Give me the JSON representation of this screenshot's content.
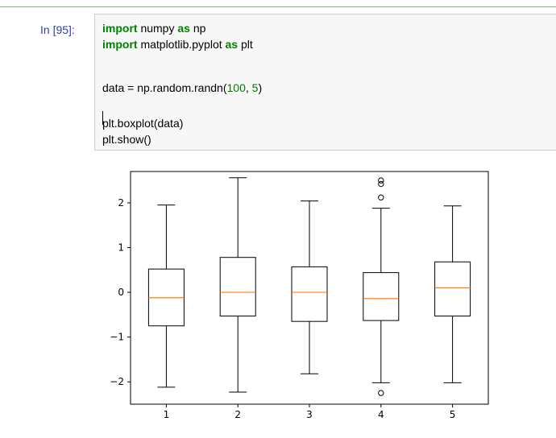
{
  "cell": {
    "prompt": "In [95]:",
    "line1": {
      "kw1": "import",
      "rest1": " numpy ",
      "kw2": "as",
      "rest2": " np"
    },
    "line2": {
      "kw1": "import",
      "rest1": " matplotlib.pyplot ",
      "kw2": "as",
      "rest2": " plt"
    },
    "line3": {
      "prefix": "data = np.random.randn(",
      "n1": "100",
      "sep": ", ",
      "n2": "5",
      "suffix": ")"
    },
    "line4": "plt.boxplot(data)",
    "line5": "plt.show()"
  },
  "colors": {
    "keyword": "#008000",
    "prompt": "#303f9f",
    "median": "#ff7f0e",
    "cell_bg": "#f7f7f7"
  },
  "chart_data": {
    "type": "boxplot",
    "categories": [
      "1",
      "2",
      "3",
      "4",
      "5"
    ],
    "boxes": [
      {
        "q1": -0.75,
        "median": -0.12,
        "q3": 0.52,
        "whisker_low": -2.12,
        "whisker_high": 1.95,
        "outliers": []
      },
      {
        "q1": -0.53,
        "median": 0.0,
        "q3": 0.78,
        "whisker_low": -2.23,
        "whisker_high": 2.56,
        "outliers": []
      },
      {
        "q1": -0.65,
        "median": 0.0,
        "q3": 0.57,
        "whisker_low": -1.82,
        "whisker_high": 2.04,
        "outliers": []
      },
      {
        "q1": -0.63,
        "median": -0.14,
        "q3": 0.44,
        "whisker_low": -2.02,
        "whisker_high": 1.88,
        "outliers": [
          2.12,
          2.42,
          2.5,
          -2.25
        ]
      },
      {
        "q1": -0.53,
        "median": 0.1,
        "q3": 0.68,
        "whisker_low": -2.02,
        "whisker_high": 1.93,
        "outliers": []
      }
    ],
    "yticks": [
      -2,
      -1,
      0,
      1,
      2
    ],
    "ylim": [
      -2.5,
      2.7
    ],
    "grid": false,
    "title": "",
    "xlabel": "",
    "ylabel": ""
  }
}
